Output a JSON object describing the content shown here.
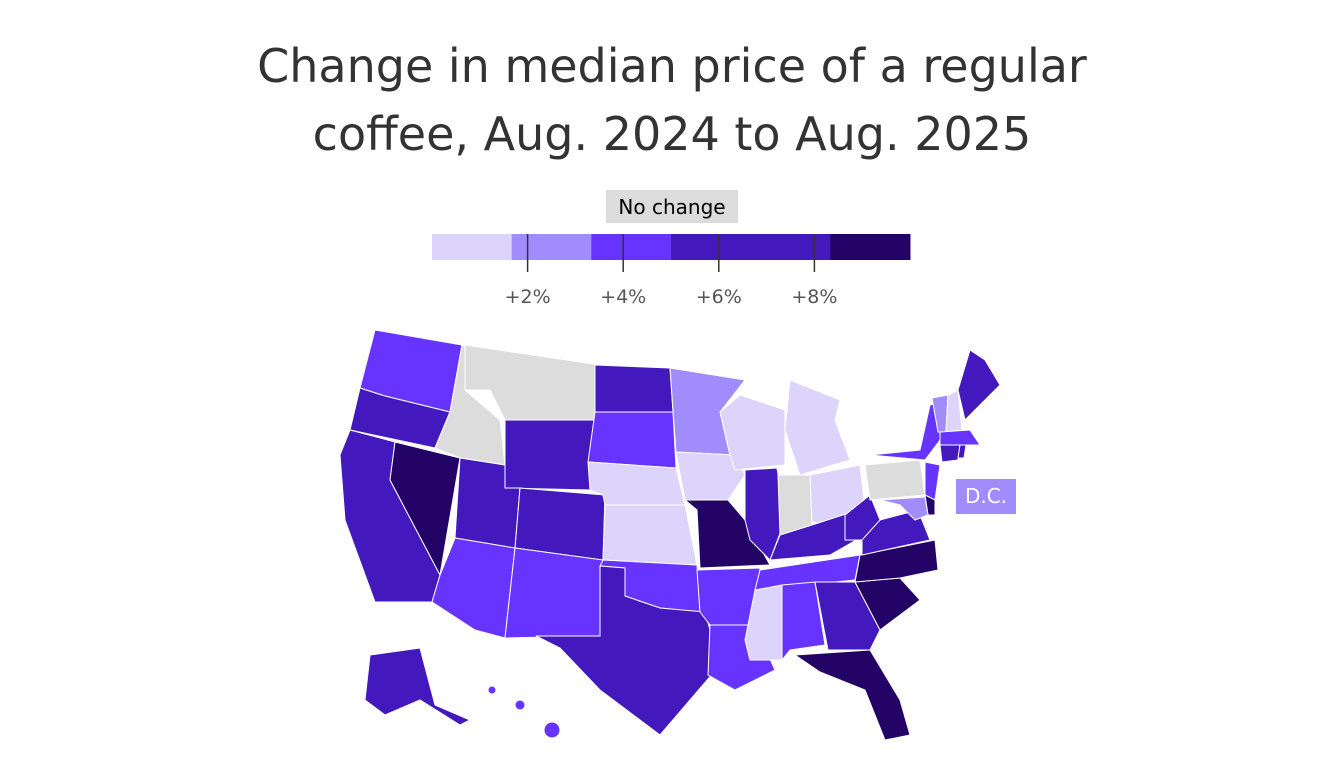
{
  "title": [
    "Change in median price of a regular",
    "coffee, Aug. 2024 to Aug. 2025"
  ],
  "legend": {
    "no_change": "No change",
    "no_change_color": "#dcdcdc",
    "lim": [
      0,
      10
    ],
    "colors": [
      "#dcd4fb",
      "#a18cfb",
      "#6633ff",
      "#4318bd",
      "#4318bd",
      "#230466"
    ],
    "ticks": [
      {
        "value": 2,
        "label": "+2%"
      },
      {
        "value": 4,
        "label": "+4%"
      },
      {
        "value": 6,
        "label": "+6%"
      },
      {
        "value": 8,
        "label": "+8%"
      }
    ]
  },
  "dc_label": "D.C."
}
